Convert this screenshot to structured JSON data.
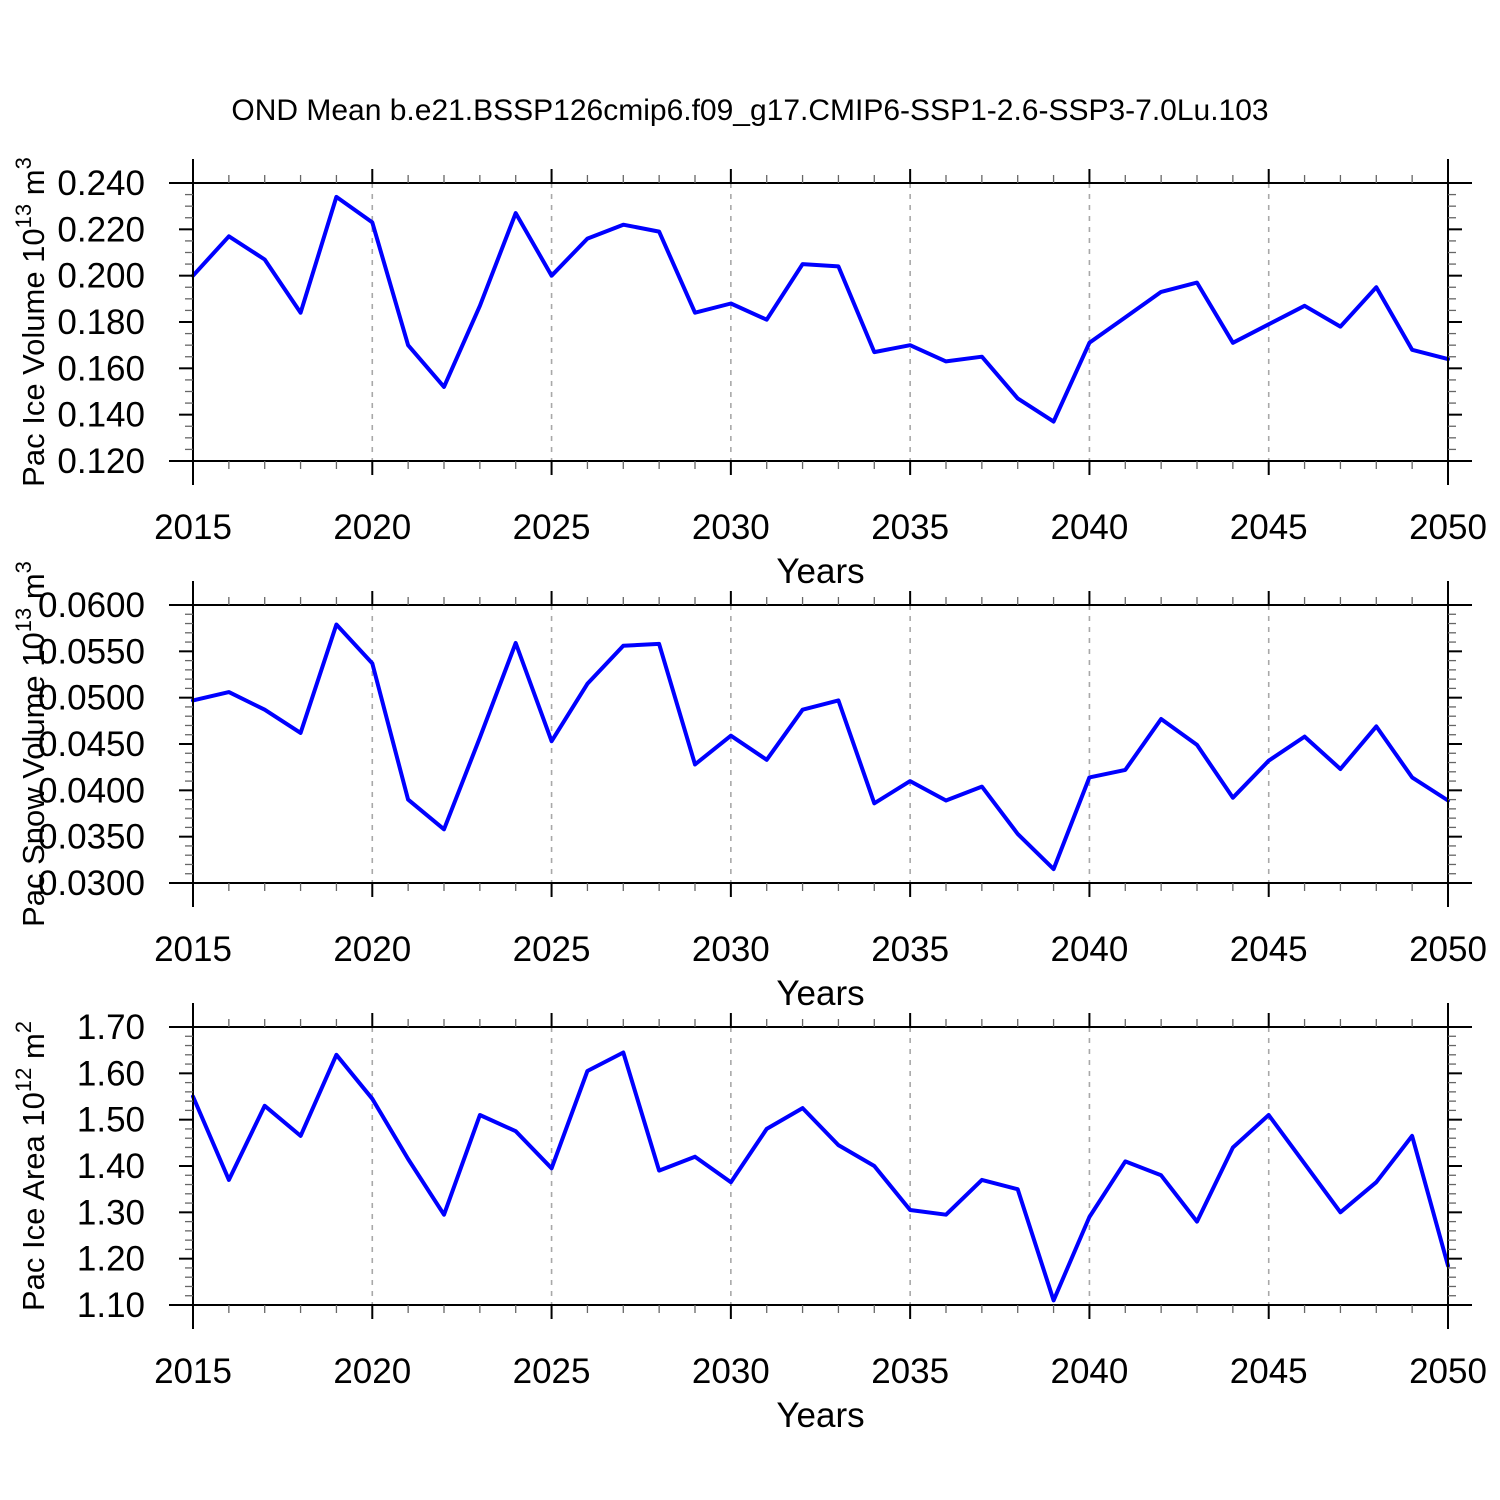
{
  "title": "OND Mean b.e21.BSSP126cmip6.f09_g17.CMIP6-SSP1-2.6-SSP3-7.0Lu.103",
  "background": "#ffffff",
  "axis_color": "#000000",
  "minor_tick_color": "#666666",
  "line_color": "#0000ff",
  "grid_color": "#a8a8a8",
  "xlabel": "Years",
  "xlim": [
    2015,
    2050
  ],
  "x_tick_labels": [
    "2015",
    "2020",
    "2025",
    "2030",
    "2035",
    "2040",
    "2045",
    "2050"
  ],
  "grid_years": [
    2020,
    2025,
    2030,
    2035,
    2040,
    2045
  ],
  "years": [
    2015,
    2016,
    2017,
    2018,
    2019,
    2020,
    2021,
    2022,
    2023,
    2024,
    2025,
    2026,
    2027,
    2028,
    2029,
    2030,
    2031,
    2032,
    2033,
    2034,
    2035,
    2036,
    2037,
    2038,
    2039,
    2040,
    2041,
    2042,
    2043,
    2044,
    2045,
    2046,
    2047,
    2048,
    2049,
    2050
  ],
  "chart_data": [
    {
      "type": "line",
      "name": "pac-ice-volume",
      "xlabel": "Years",
      "ylabel": "Pac Ice Volume 10¹³ m³",
      "ylabel_parts": [
        {
          "text": "Pac Ice Volume 10"
        },
        {
          "text": "13",
          "sup": true
        },
        {
          "text": " m"
        },
        {
          "text": "3",
          "sup": true
        }
      ],
      "ylim": [
        0.12,
        0.24
      ],
      "y_tick_labels": [
        "0.120",
        "0.140",
        "0.160",
        "0.180",
        "0.200",
        "0.220",
        "0.240"
      ],
      "y_minor_step": 0.005,
      "values": [
        0.2,
        0.217,
        0.207,
        0.184,
        0.234,
        0.223,
        0.17,
        0.152,
        0.187,
        0.227,
        0.2,
        0.216,
        0.222,
        0.219,
        0.184,
        0.188,
        0.181,
        0.205,
        0.204,
        0.167,
        0.17,
        0.163,
        0.165,
        0.147,
        0.137,
        0.171,
        0.182,
        0.193,
        0.197,
        0.171,
        0.179,
        0.187,
        0.178,
        0.195,
        0.168,
        0.164
      ]
    },
    {
      "type": "line",
      "name": "pac-snow-volume",
      "xlabel": "Years",
      "ylabel": "Pac Snow Volume 10¹³ m³",
      "ylabel_parts": [
        {
          "text": "Pac Snow Volume 10"
        },
        {
          "text": "13",
          "sup": true
        },
        {
          "text": " m"
        },
        {
          "text": "3",
          "sup": true
        }
      ],
      "ylim": [
        0.03,
        0.06
      ],
      "y_tick_labels": [
        "0.0300",
        "0.0350",
        "0.0400",
        "0.0450",
        "0.0500",
        "0.0550",
        "0.0600"
      ],
      "y_minor_step": 0.001,
      "values": [
        0.0497,
        0.0506,
        0.0487,
        0.0462,
        0.0579,
        0.0537,
        0.039,
        0.0358,
        0.0457,
        0.0559,
        0.0453,
        0.0515,
        0.0556,
        0.0558,
        0.0428,
        0.0459,
        0.0433,
        0.0487,
        0.0497,
        0.0386,
        0.041,
        0.0389,
        0.0404,
        0.0353,
        0.0315,
        0.0414,
        0.0422,
        0.0477,
        0.0449,
        0.0392,
        0.0432,
        0.0458,
        0.0423,
        0.0469,
        0.0414,
        0.0389
      ]
    },
    {
      "type": "line",
      "name": "pac-ice-area",
      "xlabel": "Years",
      "ylabel": "Pac Ice Area 10¹² m²",
      "ylabel_parts": [
        {
          "text": "Pac Ice Area 10"
        },
        {
          "text": "12",
          "sup": true
        },
        {
          "text": " m"
        },
        {
          "text": "2",
          "sup": true
        }
      ],
      "ylim": [
        1.1,
        1.7
      ],
      "y_tick_labels": [
        "1.10",
        "1.20",
        "1.30",
        "1.40",
        "1.50",
        "1.60",
        "1.70"
      ],
      "y_minor_step": 0.02,
      "values": [
        1.55,
        1.37,
        1.53,
        1.465,
        1.64,
        1.545,
        1.415,
        1.295,
        1.51,
        1.475,
        1.395,
        1.605,
        1.645,
        1.39,
        1.42,
        1.365,
        1.48,
        1.525,
        1.445,
        1.4,
        1.305,
        1.295,
        1.37,
        1.35,
        1.11,
        1.29,
        1.41,
        1.38,
        1.28,
        1.44,
        1.51,
        1.405,
        1.3,
        1.365,
        1.465,
        1.185
      ]
    }
  ]
}
